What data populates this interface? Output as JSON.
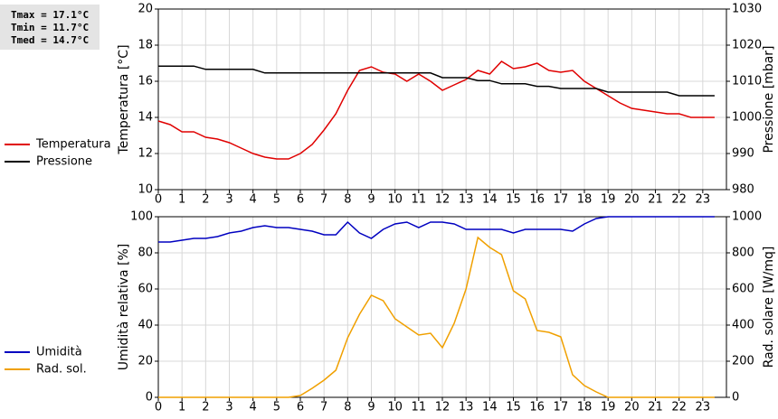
{
  "stats": [
    "Tmax = 17.1°C",
    "Tmin = 11.7°C",
    "Tmed = 14.7°C"
  ],
  "chart_data": [
    {
      "type": "line",
      "y_label": "Temperatura [°C]",
      "y2_label": "Pressione [mbar]",
      "xlim": [
        0,
        24
      ],
      "xticks": [
        0,
        1,
        2,
        3,
        4,
        5,
        6,
        7,
        8,
        9,
        10,
        11,
        12,
        13,
        14,
        15,
        16,
        17,
        18,
        19,
        20,
        21,
        22,
        23
      ],
      "ylim": [
        10,
        20
      ],
      "yticks": [
        10,
        12,
        14,
        16,
        18,
        20
      ],
      "y2lim": [
        980,
        1030
      ],
      "y2ticks": [
        980,
        990,
        1000,
        1010,
        1020,
        1030
      ],
      "grid": true,
      "legend": "left",
      "x": [
        0,
        0.5,
        1,
        1.5,
        2,
        2.5,
        3,
        3.5,
        4,
        4.5,
        5,
        5.5,
        6,
        6.5,
        7,
        7.5,
        8,
        8.5,
        9,
        9.5,
        10,
        10.5,
        11,
        11.5,
        12,
        12.5,
        13,
        13.5,
        14,
        14.5,
        15,
        15.5,
        16,
        16.5,
        17,
        17.5,
        18,
        18.5,
        19,
        19.5,
        20,
        20.5,
        21,
        21.5,
        22,
        22.5,
        23,
        23.5
      ],
      "series": [
        {
          "name": "Temperatura",
          "color": "#e00000",
          "values": [
            13.8,
            13.6,
            13.2,
            13.2,
            12.9,
            12.8,
            12.6,
            12.3,
            12.0,
            11.8,
            11.7,
            11.7,
            12.0,
            12.5,
            13.3,
            14.2,
            15.5,
            16.6,
            16.8,
            16.5,
            16.4,
            16.0,
            16.4,
            16.0,
            15.5,
            15.8,
            16.1,
            16.6,
            16.4,
            17.1,
            16.7,
            16.8,
            17.0,
            16.6,
            16.5,
            16.6,
            16.0,
            15.6,
            15.2,
            14.8,
            14.5,
            14.4,
            14.3,
            14.2,
            14.2,
            14.0,
            14.0,
            14.0
          ]
        },
        {
          "name": "Pressione",
          "color": "#000000",
          "axis": "y2",
          "values": [
            1014.2,
            1014.2,
            1014.2,
            1014.2,
            1013.3,
            1013.3,
            1013.3,
            1013.3,
            1013.3,
            1012.3,
            1012.3,
            1012.3,
            1012.3,
            1012.3,
            1012.3,
            1012.3,
            1012.3,
            1012.3,
            1012.3,
            1012.3,
            1012.3,
            1012.3,
            1012.3,
            1012.3,
            1011,
            1011,
            1011,
            1010.2,
            1010.2,
            1009.3,
            1009.3,
            1009.3,
            1008.6,
            1008.6,
            1008,
            1008,
            1008,
            1008,
            1007,
            1007,
            1007,
            1007,
            1007,
            1007,
            1006,
            1006,
            1006,
            1006
          ]
        }
      ]
    },
    {
      "type": "line",
      "y_label": "Umidità relativa [%]",
      "y2_label": "Rad. solare [W/mq]",
      "xlim": [
        0,
        24
      ],
      "xticks": [
        0,
        1,
        2,
        3,
        4,
        5,
        6,
        7,
        8,
        9,
        10,
        11,
        12,
        13,
        14,
        15,
        16,
        17,
        18,
        19,
        20,
        21,
        22,
        23
      ],
      "ylim": [
        0,
        100
      ],
      "yticks": [
        0,
        20,
        40,
        60,
        80,
        100
      ],
      "y2lim": [
        0,
        1000
      ],
      "y2ticks": [
        0,
        200,
        400,
        600,
        800,
        1000
      ],
      "grid": true,
      "legend": "left",
      "x": [
        0,
        0.5,
        1,
        1.5,
        2,
        2.5,
        3,
        3.5,
        4,
        4.5,
        5,
        5.5,
        6,
        6.5,
        7,
        7.5,
        8,
        8.5,
        9,
        9.5,
        10,
        10.5,
        11,
        11.5,
        12,
        12.5,
        13,
        13.5,
        14,
        14.5,
        15,
        15.5,
        16,
        16.5,
        17,
        17.5,
        18,
        18.5,
        19,
        19.5,
        20,
        20.5,
        21,
        21.5,
        22,
        22.5,
        23,
        23.5
      ],
      "series": [
        {
          "name": "Umidità",
          "color": "#0000c0",
          "values": [
            86,
            86,
            87,
            88,
            88,
            89,
            91,
            92,
            94,
            95,
            94,
            94,
            93,
            92,
            90,
            90,
            97,
            91,
            88,
            93,
            96,
            97,
            94,
            97,
            97,
            96,
            93,
            93,
            93,
            93,
            91,
            93,
            93,
            93,
            93,
            92,
            96,
            99,
            100,
            100,
            100,
            100,
            100,
            100,
            100,
            100,
            100,
            100
          ]
        },
        {
          "name": "Rad. sol.",
          "color": "#f0a000",
          "axis": "y2",
          "values": [
            0,
            0,
            0,
            0,
            0,
            0,
            0,
            0,
            0,
            0,
            0,
            0,
            10,
            50,
            95,
            150,
            330,
            460,
            565,
            535,
            435,
            390,
            345,
            355,
            275,
            410,
            600,
            885,
            830,
            790,
            590,
            545,
            370,
            360,
            335,
            125,
            65,
            30,
            0,
            0,
            0,
            0,
            0,
            0,
            0,
            0,
            0,
            0
          ]
        }
      ]
    }
  ]
}
